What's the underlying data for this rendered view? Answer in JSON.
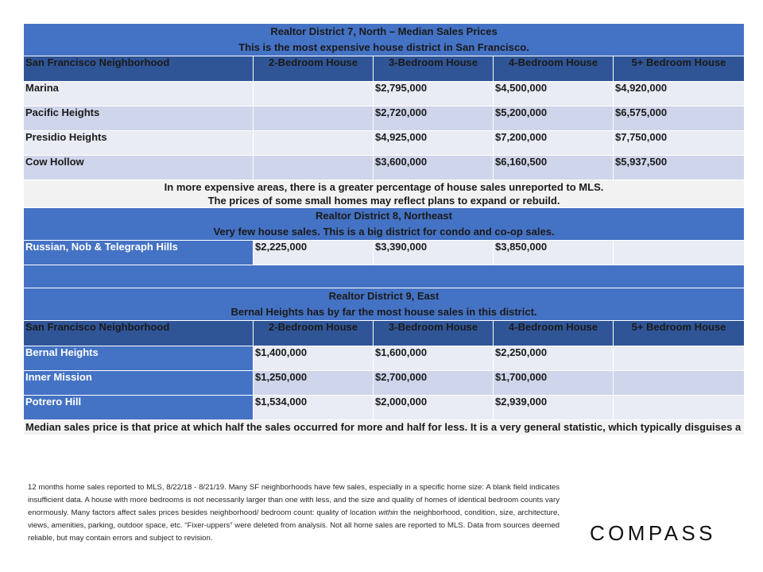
{
  "columns": [
    "San Francisco Neighborhood",
    "2-Bedroom House",
    "3-Bedroom House",
    "4-Bedroom House",
    "5+ Bedroom House"
  ],
  "district7": {
    "title_line1": "Realtor District 7, North – Median Sales Prices",
    "title_line2": "This is the most expensive house district in San Francisco.",
    "rows": [
      {
        "name": "Marina",
        "br2": "",
        "br3": "$2,795,000",
        "br4": "$4,500,000",
        "br5": "$4,920,000"
      },
      {
        "name": "Pacific Heights",
        "br2": "",
        "br3": "$2,720,000",
        "br4": "$5,200,000",
        "br5": "$6,575,000"
      },
      {
        "name": "Presidio Heights",
        "br2": "",
        "br3": "$4,925,000",
        "br4": "$7,200,000",
        "br5": "$7,750,000"
      },
      {
        "name": "Cow Hollow",
        "br2": "",
        "br3": "$3,600,000",
        "br4": "$6,160,500",
        "br5": "$5,937,500"
      }
    ],
    "note_line1": "In more expensive areas, there is a greater percentage of house sales unreported to MLS.",
    "note_line2": "The prices of some small homes may reflect plans to expand or rebuild."
  },
  "district8": {
    "title_line1": "Realtor District 8, Northeast",
    "title_line2": "Very few house sales. This is a big district for condo and co-op sales.",
    "rows": [
      {
        "name": "Russian, Nob & Telegraph Hills",
        "br2": "$2,225,000",
        "br3": "$3,390,000",
        "br4": "$3,850,000",
        "br5": ""
      }
    ]
  },
  "district9": {
    "title_line1": "Realtor District 9, East",
    "title_line2": "Bernal Heights has by far the most house sales in this district.",
    "rows": [
      {
        "name": "Bernal Heights",
        "br2": "$1,400,000",
        "br3": "$1,600,000",
        "br4": "$2,250,000",
        "br5": ""
      },
      {
        "name": "Inner Mission",
        "br2": "$1,250,000",
        "br3": "$2,700,000",
        "br4": "$1,700,000",
        "br5": ""
      },
      {
        "name": "Potrero Hill",
        "br2": "$1,534,000",
        "br3": "$2,000,000",
        "br4": "$2,939,000",
        "br5": ""
      }
    ]
  },
  "median_note": "Median sales price is that price at which half the sales occurred for more and half for less. It is a very general statistic, which typically disguises a wide range of prices in the underlying individual sales. Anomalies and significant fluctuations in median sales prices unrelated to changes in fair market value are not uncommon in San Francisco neighborhoods.",
  "disclaimer": {
    "part1": "12 months home sales reported to MLS, 8/22/18 - 8/21/19. Many SF neighborhoods have few sales, especially in a specific home size: A blank field indicates insufficient data. A house with more bedrooms is not necessarily larger than one with less, and the size and quality of homes of identical bedroom counts vary enormously. Many factors affect sales prices besides neighborhood/ bedroom count: quality of location ",
    "emph": "within",
    "part2": " the neighborhood, condition, size, architecture, views, amenities, parking, outdoor space, etc. “Fixer-uppers” were deleted from analysis. Not all home sales are reported to MLS. Data from sources deemed reliable, but may contain errors and subject to revision."
  },
  "logo": "COMPASS",
  "colors": {
    "title_blue": "#4472c4",
    "header_navy": "#2f5597",
    "row_light": "#e9ecf5",
    "row_mid": "#cfd5ea",
    "note_gray": "#f2f2f2"
  }
}
